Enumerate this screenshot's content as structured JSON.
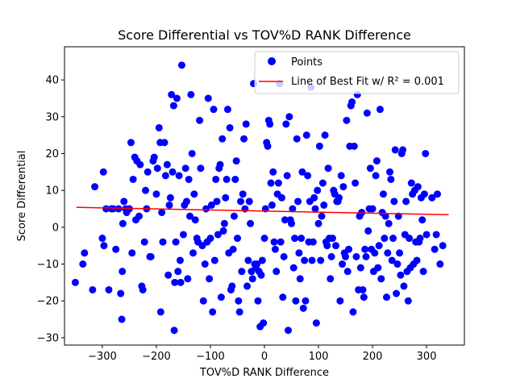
{
  "chart_data": {
    "type": "scatter",
    "title": "Score Differential vs TOV%D RANK Difference",
    "xlabel": "TOV%D RANK Difference",
    "ylabel": "Score Differential",
    "xlim": [
      -370,
      370
    ],
    "ylim": [
      -32,
      49
    ],
    "xticks": [
      -300,
      -200,
      -100,
      0,
      100,
      200,
      300
    ],
    "yticks": [
      -30,
      -20,
      -10,
      0,
      10,
      20,
      30,
      40
    ],
    "grid": false,
    "legend_position": "top-right",
    "colors": {
      "points": "#0000ff",
      "fit_line": "#ff0000"
    },
    "series": [
      {
        "name": "Points",
        "kind": "scatter",
        "points": [
          [
            -350,
            -15
          ],
          [
            -336,
            -10
          ],
          [
            -333,
            -7
          ],
          [
            -318,
            -17
          ],
          [
            -314,
            11
          ],
          [
            -300,
            -3
          ],
          [
            -298,
            15
          ],
          [
            -297,
            -5
          ],
          [
            -293,
            5
          ],
          [
            -288,
            -17
          ],
          [
            -283,
            5
          ],
          [
            -280,
            5
          ],
          [
            -275,
            -6
          ],
          [
            -270,
            5
          ],
          [
            -266,
            -18
          ],
          [
            -264,
            -25
          ],
          [
            -263,
            -12
          ],
          [
            -262,
            1
          ],
          [
            -260,
            7
          ],
          [
            -257,
            5
          ],
          [
            -255,
            4
          ],
          [
            -250,
            5
          ],
          [
            -247,
            23
          ],
          [
            -245,
            -7
          ],
          [
            -243,
            13
          ],
          [
            -240,
            19
          ],
          [
            -238,
            2
          ],
          [
            -236,
            18
          ],
          [
            -232,
            3
          ],
          [
            -230,
            17
          ],
          [
            -227,
            -16
          ],
          [
            -225,
            -17
          ],
          [
            -222,
            -4
          ],
          [
            -220,
            10
          ],
          [
            -218,
            5
          ],
          [
            -216,
            15
          ],
          [
            -212,
            -8
          ],
          [
            -210,
            -8
          ],
          [
            -206,
            18
          ],
          [
            -204,
            19
          ],
          [
            -200,
            9
          ],
          [
            -198,
            16
          ],
          [
            -195,
            27
          ],
          [
            -193,
            23
          ],
          [
            -192,
            -23
          ],
          [
            -190,
            4
          ],
          [
            -188,
            -4
          ],
          [
            -185,
            23
          ],
          [
            -183,
            14
          ],
          [
            -180,
            17
          ],
          [
            -178,
            -13
          ],
          [
            -176,
            6
          ],
          [
            -174,
            8
          ],
          [
            -172,
            36
          ],
          [
            -170,
            15
          ],
          [
            -168,
            33
          ],
          [
            -167,
            -28
          ],
          [
            -166,
            -15
          ],
          [
            -164,
            -4
          ],
          [
            -162,
            35
          ],
          [
            -160,
            -12
          ],
          [
            -158,
            14
          ],
          [
            -156,
            -9
          ],
          [
            -155,
            -15
          ],
          [
            -153,
            44
          ],
          [
            -150,
            -2
          ],
          [
            -148,
            6
          ],
          [
            -146,
            16
          ],
          [
            -144,
            7
          ],
          [
            -142,
            -14
          ],
          [
            -140,
            13
          ],
          [
            -138,
            3
          ],
          [
            -136,
            36
          ],
          [
            -134,
            20
          ],
          [
            -132,
            -7
          ],
          [
            -130,
            9
          ],
          [
            -128,
            2
          ],
          [
            -125,
            -3
          ],
          [
            -123,
            -4
          ],
          [
            -120,
            29
          ],
          [
            -118,
            16
          ],
          [
            -115,
            -5
          ],
          [
            -113,
            -20
          ],
          [
            -110,
            -10
          ],
          [
            -108,
            5
          ],
          [
            -106,
            -4
          ],
          [
            -104,
            35
          ],
          [
            -102,
            -14
          ],
          [
            -100,
            -3
          ],
          [
            -98,
            6
          ],
          [
            -96,
            -23
          ],
          [
            -94,
            32
          ],
          [
            -92,
            -9
          ],
          [
            -90,
            13
          ],
          [
            -88,
            7
          ],
          [
            -86,
            -2
          ],
          [
            -84,
            16
          ],
          [
            -82,
            17
          ],
          [
            -80,
            -19
          ],
          [
            -78,
            24
          ],
          [
            -76,
            -1
          ],
          [
            -74,
            1
          ],
          [
            -72,
            8
          ],
          [
            -70,
            13
          ],
          [
            -68,
            32
          ],
          [
            -66,
            -7
          ],
          [
            -64,
            27
          ],
          [
            -62,
            -17
          ],
          [
            -60,
            -16
          ],
          [
            -58,
            -6
          ],
          [
            -56,
            3
          ],
          [
            -54,
            13
          ],
          [
            -52,
            18
          ],
          [
            -50,
            -3
          ],
          [
            -48,
            -20
          ],
          [
            -46,
            -23
          ],
          [
            -44,
            7
          ],
          [
            -42,
            -12
          ],
          [
            -40,
            9
          ],
          [
            -38,
            24
          ],
          [
            -36,
            5
          ],
          [
            -34,
            28
          ],
          [
            -32,
            -16
          ],
          [
            -30,
            -9
          ],
          [
            -28,
            7
          ],
          [
            -26,
            1
          ],
          [
            -24,
            -12
          ],
          [
            -22,
            -14
          ],
          [
            -20,
            39
          ],
          [
            -18,
            -10
          ],
          [
            -16,
            -11
          ],
          [
            -14,
            -10
          ],
          [
            -12,
            -20
          ],
          [
            -10,
            -12
          ],
          [
            -8,
            -27
          ],
          [
            -6,
            -13
          ],
          [
            -4,
            -9
          ],
          [
            -2,
            -26
          ],
          [
            0,
            -3
          ],
          [
            2,
            5
          ],
          [
            4,
            23
          ],
          [
            6,
            22
          ],
          [
            8,
            29
          ],
          [
            10,
            28
          ],
          [
            12,
            12
          ],
          [
            14,
            6
          ],
          [
            16,
            15
          ],
          [
            18,
            -4
          ],
          [
            20,
            -6
          ],
          [
            22,
            -12
          ],
          [
            24,
            9
          ],
          [
            26,
            12
          ],
          [
            28,
            39
          ],
          [
            30,
            -4
          ],
          [
            32,
            8
          ],
          [
            34,
            -19
          ],
          [
            36,
            -8
          ],
          [
            38,
            2
          ],
          [
            40,
            28
          ],
          [
            42,
            14
          ],
          [
            44,
            -28
          ],
          [
            46,
            30
          ],
          [
            48,
            2
          ],
          [
            50,
            1
          ],
          [
            52,
            5
          ],
          [
            54,
            -11
          ],
          [
            56,
            -3
          ],
          [
            58,
            -20
          ],
          [
            60,
            24
          ],
          [
            62,
            7
          ],
          [
            64,
            -7
          ],
          [
            66,
            -14
          ],
          [
            68,
            -3
          ],
          [
            70,
            15
          ],
          [
            72,
            -22
          ],
          [
            74,
            -9
          ],
          [
            76,
            -20
          ],
          [
            78,
            25
          ],
          [
            80,
            14
          ],
          [
            82,
            -4
          ],
          [
            84,
            7
          ],
          [
            86,
            38
          ],
          [
            88,
            -9
          ],
          [
            90,
            -4
          ],
          [
            92,
            8
          ],
          [
            94,
            5
          ],
          [
            96,
            -26
          ],
          [
            98,
            10
          ],
          [
            100,
            1
          ],
          [
            102,
            22
          ],
          [
            104,
            -9
          ],
          [
            106,
            3
          ],
          [
            108,
            12
          ],
          [
            110,
            6
          ],
          [
            112,
            25
          ],
          [
            114,
            -4
          ],
          [
            116,
            -5
          ],
          [
            118,
            16
          ],
          [
            120,
            -3
          ],
          [
            122,
            -14
          ],
          [
            124,
            -8
          ],
          [
            126,
            -3
          ],
          [
            128,
            10
          ],
          [
            130,
            9
          ],
          [
            132,
            -5
          ],
          [
            134,
            7
          ],
          [
            136,
            7
          ],
          [
            138,
            8
          ],
          [
            140,
            -20
          ],
          [
            142,
            14
          ],
          [
            144,
            -10
          ],
          [
            146,
            11
          ],
          [
            148,
            -7
          ],
          [
            150,
            -8
          ],
          [
            152,
            29
          ],
          [
            154,
            -12
          ],
          [
            156,
            -6
          ],
          [
            158,
            22
          ],
          [
            160,
            33
          ],
          [
            162,
            34
          ],
          [
            164,
            -23
          ],
          [
            166,
            22
          ],
          [
            168,
            12
          ],
          [
            170,
            -8
          ],
          [
            172,
            36
          ],
          [
            174,
            -17
          ],
          [
            176,
            3
          ],
          [
            178,
            -11
          ],
          [
            180,
            4
          ],
          [
            182,
            -17
          ],
          [
            184,
            -19
          ],
          [
            186,
            -6
          ],
          [
            188,
            -8
          ],
          [
            190,
            31
          ],
          [
            192,
            -1
          ],
          [
            194,
            5
          ],
          [
            196,
            16
          ],
          [
            198,
            -6
          ],
          [
            200,
            5
          ],
          [
            202,
            -12
          ],
          [
            204,
            -7
          ],
          [
            206,
            14
          ],
          [
            208,
            18
          ],
          [
            210,
            -11
          ],
          [
            212,
            -5
          ],
          [
            214,
            32
          ],
          [
            216,
            -14
          ],
          [
            218,
            4
          ],
          [
            220,
            9
          ],
          [
            222,
            -3
          ],
          [
            224,
            3
          ],
          [
            226,
            -19
          ],
          [
            228,
            -7
          ],
          [
            230,
            1
          ],
          [
            232,
            15
          ],
          [
            234,
            13
          ],
          [
            236,
            -9
          ],
          [
            238,
            -3
          ],
          [
            240,
            7
          ],
          [
            242,
            21
          ],
          [
            244,
            -18
          ],
          [
            246,
            -10
          ],
          [
            248,
            3
          ],
          [
            250,
            -7
          ],
          [
            252,
            -13
          ],
          [
            254,
            20
          ],
          [
            256,
            21
          ],
          [
            258,
            -16
          ],
          [
            260,
            -2
          ],
          [
            262,
            7
          ],
          [
            264,
            -12
          ],
          [
            266,
            -20
          ],
          [
            268,
            -3
          ],
          [
            270,
            -11
          ],
          [
            272,
            12
          ],
          [
            274,
            9
          ],
          [
            276,
            -10
          ],
          [
            278,
            10
          ],
          [
            280,
            -4
          ],
          [
            282,
            -9
          ],
          [
            284,
            11
          ],
          [
            286,
            -4
          ],
          [
            288,
            -3
          ],
          [
            290,
            8
          ],
          [
            292,
            2
          ],
          [
            294,
            -12
          ],
          [
            296,
            9
          ],
          [
            298,
            20
          ],
          [
            300,
            -2
          ],
          [
            310,
            8
          ],
          [
            315,
            -6
          ],
          [
            318,
            -2
          ],
          [
            320,
            9
          ],
          [
            325,
            -10
          ],
          [
            330,
            -5
          ]
        ]
      },
      {
        "name": "Line of Best Fit w/ R² = 0.001",
        "kind": "line",
        "x": [
          -348,
          341
        ],
        "y": [
          5.4,
          3.4
        ]
      }
    ],
    "legend": {
      "points_label": "Points",
      "line_label": "Line of Best Fit w/ R² = 0.001"
    }
  }
}
